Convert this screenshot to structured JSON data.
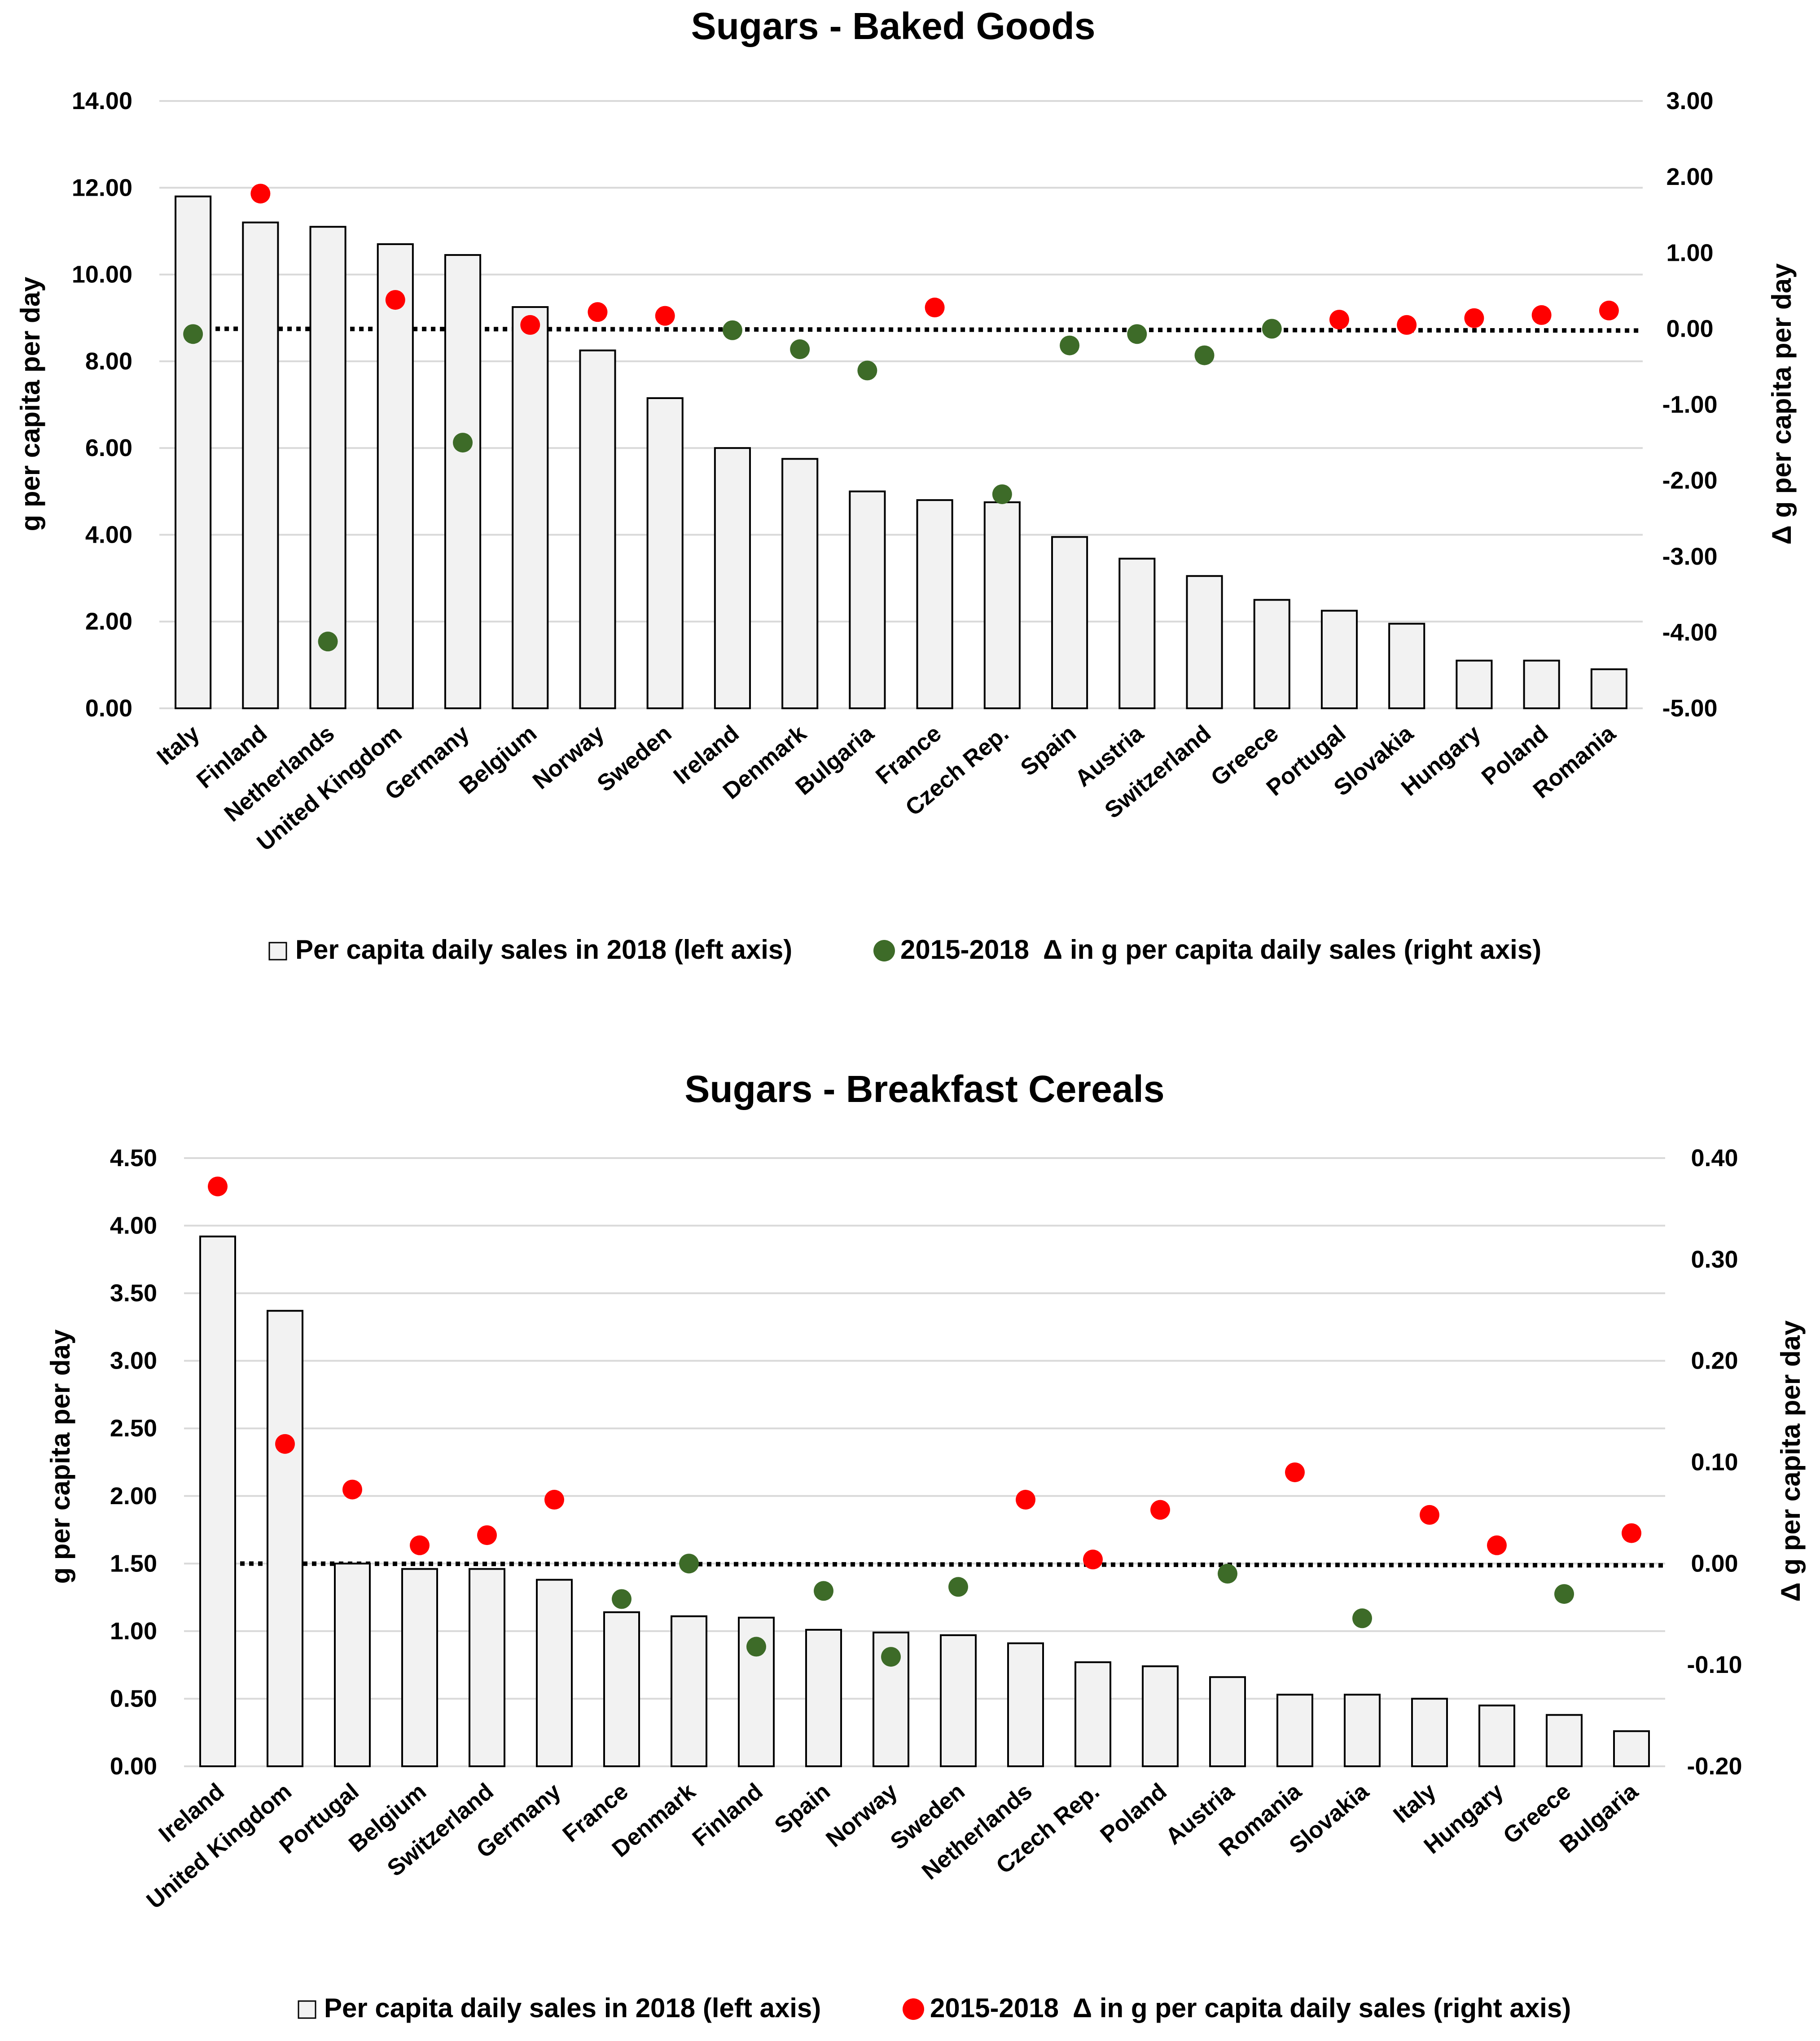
{
  "colors": {
    "bar_fill": "#f2f2f2",
    "bar_stroke": "#000000",
    "gridline": "#d9d9d9",
    "positive_dot": "#ff0000",
    "negative_dot": "#3d6b28",
    "zero_line": "#000000",
    "text": "#000000"
  },
  "chart_data": [
    {
      "type": "bar",
      "title": "Sugars - Baked Goods",
      "ylabel": "g per capita per day",
      "y2label": "Δ g per capita per day",
      "ylim": [
        0,
        14
      ],
      "y2lim": [
        -5,
        3
      ],
      "yticks": [
        "0.00",
        "2.00",
        "4.00",
        "6.00",
        "8.00",
        "10.00",
        "12.00",
        "14.00"
      ],
      "y2ticks": [
        "-5.00",
        "-4.00",
        "-3.00",
        "-2.00",
        "-1.00",
        "0.00",
        "1.00",
        "2.00",
        "3.00"
      ],
      "grid": true,
      "categories": [
        "Italy",
        "Finland",
        "Netherlands",
        "United Kingdom",
        "Germany",
        "Belgium",
        "Norway",
        "Sweden",
        "Ireland",
        "Denmark",
        "Bulgaria",
        "France",
        "Czech Rep.",
        "Spain",
        "Austria",
        "Switzerland",
        "Greece",
        "Portugal",
        "Slovakia",
        "Hungary",
        "Poland",
        "Romania"
      ],
      "series": [
        {
          "name": "Per capita daily sales in 2018 (left axis)",
          "type": "bar",
          "axis": "left",
          "values": [
            11.8,
            11.2,
            11.1,
            10.7,
            10.45,
            9.25,
            8.25,
            7.15,
            6.0,
            5.75,
            5.0,
            4.8,
            4.75,
            3.95,
            3.45,
            3.05,
            2.5,
            2.25,
            1.95,
            1.1,
            1.1,
            0.9
          ]
        },
        {
          "name": "2015-2018  Δ in g per capita daily sales (right axis)",
          "type": "scatter",
          "axis": "right",
          "values": [
            -0.07,
            1.78,
            -4.12,
            0.38,
            -1.5,
            0.05,
            0.22,
            0.17,
            -0.02,
            -0.27,
            -0.55,
            0.28,
            -2.18,
            -0.22,
            -0.07,
            -0.35,
            0.0,
            0.12,
            0.05,
            0.14,
            0.18,
            0.24
          ]
        }
      ],
      "legend": "bottom",
      "legend_marker": "green"
    },
    {
      "type": "bar",
      "title": "Sugars - Breakfast Cereals",
      "ylabel": "g per capita per day",
      "y2label": "Δ g per capita per day",
      "ylim": [
        0,
        4.5
      ],
      "y2lim": [
        -0.2,
        0.4
      ],
      "yticks": [
        "0.00",
        "0.50",
        "1.00",
        "1.50",
        "2.00",
        "2.50",
        "3.00",
        "3.50",
        "4.00",
        "4.50"
      ],
      "y2ticks": [
        "-0.20",
        "-0.10",
        "0.00",
        "0.10",
        "0.20",
        "0.30",
        "0.40"
      ],
      "grid": true,
      "categories": [
        "Ireland",
        "United Kingdom",
        "Portugal",
        "Belgium",
        "Switzerland",
        "Germany",
        "France",
        "Denmark",
        "Finland",
        "Spain",
        "Norway",
        "Sweden",
        "Netherlands",
        "Czech Rep.",
        "Poland",
        "Austria",
        "Romania",
        "Slovakia",
        "Italy",
        "Hungary",
        "Greece",
        "Bulgaria"
      ],
      "series": [
        {
          "name": "Per capita daily sales in 2018 (left axis)",
          "type": "bar",
          "axis": "left",
          "values": [
            3.92,
            3.37,
            1.5,
            1.46,
            1.46,
            1.38,
            1.14,
            1.11,
            1.1,
            1.01,
            0.99,
            0.97,
            0.91,
            0.77,
            0.74,
            0.66,
            0.53,
            0.53,
            0.5,
            0.45,
            0.38,
            0.26
          ]
        },
        {
          "name": "2015-2018  Δ in g per capita daily sales (right axis)",
          "type": "scatter",
          "axis": "right",
          "values": [
            0.372,
            0.118,
            0.073,
            0.018,
            0.028,
            0.063,
            -0.035,
            0.0,
            -0.082,
            -0.027,
            -0.092,
            -0.023,
            0.063,
            0.004,
            0.053,
            -0.01,
            0.09,
            -0.054,
            0.048,
            0.018,
            -0.03,
            0.03
          ]
        }
      ],
      "legend": "bottom",
      "legend_marker": "red"
    }
  ]
}
